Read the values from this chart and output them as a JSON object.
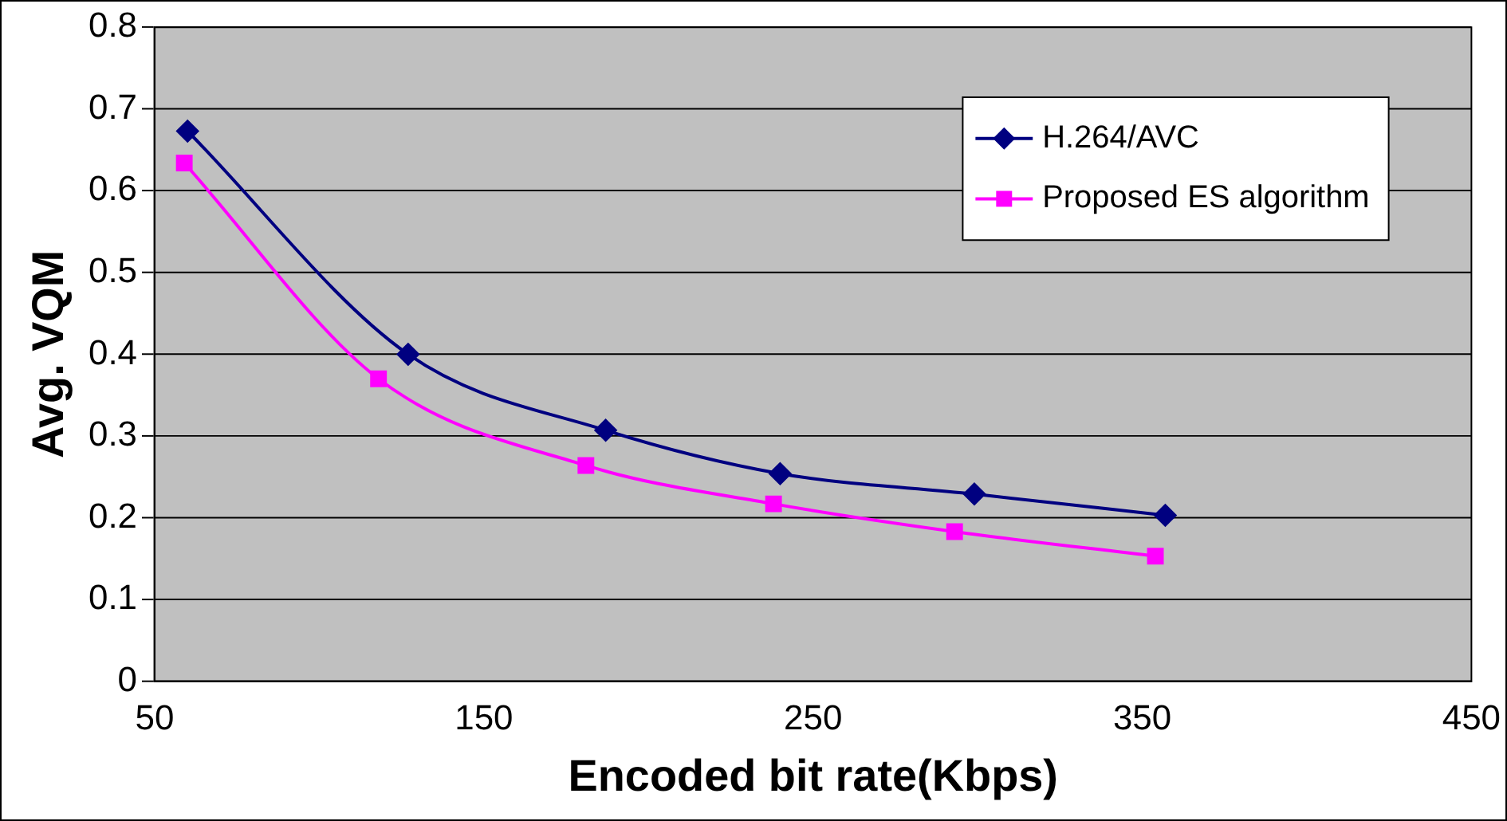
{
  "chart_data": {
    "type": "line",
    "xlabel": "Encoded bit rate(Kbps)",
    "ylabel": "Avg. VQM",
    "xlim": [
      50,
      450
    ],
    "xticks": [
      50,
      150,
      250,
      350,
      450
    ],
    "ylim": [
      0,
      0.8
    ],
    "yticks": [
      0,
      0.1,
      0.2,
      0.3,
      0.4,
      0.5,
      0.6,
      0.7,
      0.8
    ],
    "grid": "y",
    "legend": "top right",
    "series": [
      {
        "name": "H.264/AVC",
        "color": "#000080",
        "marker": "diamond",
        "x": [
          60,
          127,
          187,
          240,
          299,
          357
        ],
        "values": [
          0.673,
          0.4,
          0.307,
          0.254,
          0.229,
          0.203
        ]
      },
      {
        "name": "Proposed ES algorithm",
        "color": "#ff00ff",
        "marker": "square",
        "x": [
          59,
          118,
          181,
          238,
          293,
          354
        ],
        "values": [
          0.634,
          0.37,
          0.264,
          0.217,
          0.183,
          0.153
        ]
      }
    ]
  }
}
